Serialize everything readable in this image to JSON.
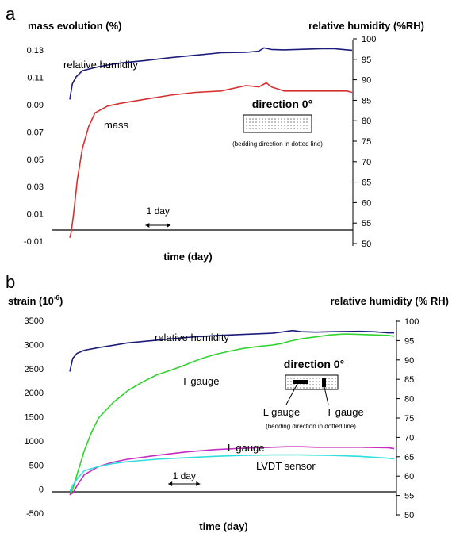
{
  "chart_data": [
    {
      "panel_label": "a",
      "type": "line",
      "title": "",
      "xlabel": "time (day)",
      "ylabel": "mass evolution (%)",
      "ylabel_right": "relative humidity (%RH)",
      "y_ticks": [
        "0.13",
        "0.11",
        "0.09",
        "0.07",
        "0.05",
        "0.03",
        "0.01",
        "-0.01"
      ],
      "y_tick_values": [
        0.13,
        0.11,
        0.09,
        0.07,
        0.05,
        0.03,
        0.01,
        -0.01
      ],
      "ylim": [
        -0.01,
        0.14
      ],
      "y2_ticks": [
        "100",
        "95",
        "90",
        "85",
        "80",
        "75",
        "70",
        "65",
        "60",
        "55",
        "50"
      ],
      "y2_tick_values": [
        100,
        95,
        90,
        85,
        80,
        75,
        70,
        65,
        60,
        55,
        50
      ],
      "y2lim": [
        50,
        100
      ],
      "xlim": [
        0,
        11.2
      ],
      "x_unit_note": "time in days, estimated from the 1 day scale bar (no tick labels printed)",
      "scale_bar_label": "1 day",
      "scale_bar": [
        3.0,
        4.0
      ],
      "series": [
        {
          "name": "relative humidity",
          "axis": "right",
          "color": "#1c1c7c",
          "x": [
            0.0,
            0.1,
            0.25,
            0.5,
            1.0,
            1.5,
            2.0,
            3.0,
            4.0,
            5.0,
            6.0,
            7.0,
            7.5,
            7.7,
            8.0,
            8.5,
            9.0,
            9.5,
            10.0,
            10.5,
            11.0,
            11.2
          ],
          "y": [
            85.2,
            89.0,
            90.7,
            92.2,
            93.0,
            93.6,
            94.1,
            94.7,
            95.4,
            96.0,
            96.6,
            96.7,
            97.0,
            97.8,
            97.4,
            97.3,
            97.4,
            97.5,
            97.6,
            97.6,
            97.3,
            97.2
          ]
        },
        {
          "name": "mass",
          "axis": "left",
          "color": "#d83030",
          "x": [
            0.0,
            0.05,
            0.15,
            0.3,
            0.5,
            0.75,
            1.0,
            1.5,
            2.0,
            3.0,
            4.0,
            5.0,
            6.0,
            7.0,
            7.5,
            7.8,
            8.0,
            8.5,
            9.0,
            10.0,
            10.5,
            11.0,
            11.2
          ],
          "y": [
            -0.0075,
            -0.004,
            0.01,
            0.035,
            0.058,
            0.074,
            0.084,
            0.089,
            0.091,
            0.094,
            0.097,
            0.099,
            0.1,
            0.104,
            0.103,
            0.106,
            0.103,
            0.1,
            0.1,
            0.1,
            0.1,
            0.1,
            0.099
          ]
        }
      ],
      "inset": {
        "title": "direction 0°",
        "caption": "(bedding direction in dotted line)"
      }
    },
    {
      "panel_label": "b",
      "type": "line",
      "title": "",
      "xlabel": "time (day)",
      "ylabel_base": "strain (10",
      "ylabel_exp": "-6",
      "ylabel_close": ")",
      "ylabel_right": "relative humidity (% RH)",
      "y_ticks": [
        "3500",
        "3000",
        "2500",
        "2000",
        "1500",
        "1000",
        "500",
        "0",
        "-500"
      ],
      "y_tick_values": [
        3500,
        3000,
        2500,
        2000,
        1500,
        1000,
        500,
        0,
        -500
      ],
      "ylim": [
        -500,
        3500
      ],
      "y2_ticks": [
        "100",
        "95",
        "90",
        "85",
        "80",
        "75",
        "70",
        "65",
        "60",
        "55",
        "50"
      ],
      "y2_tick_values": [
        100,
        95,
        90,
        85,
        80,
        75,
        70,
        65,
        60,
        55,
        50
      ],
      "y2lim": [
        50,
        100
      ],
      "xlim": [
        0,
        11.2
      ],
      "x_unit_note": "time in days, estimated from the 1 day scale bar (no tick labels printed)",
      "scale_bar_label": "1 day",
      "scale_bar": [
        3.4,
        4.5
      ],
      "series": [
        {
          "name": "relative humidity",
          "axis": "right",
          "color": "#1c1c7c",
          "x": [
            0.0,
            0.1,
            0.25,
            0.5,
            1.0,
            1.5,
            2.0,
            3.0,
            4.0,
            5.0,
            6.0,
            7.0,
            7.4,
            7.7,
            8.0,
            8.5,
            9.0,
            10.0,
            10.5,
            11.0,
            11.2
          ],
          "y": [
            87.0,
            90.4,
            91.7,
            92.5,
            93.2,
            93.8,
            94.4,
            95.1,
            95.8,
            96.3,
            96.6,
            96.9,
            97.3,
            97.6,
            97.3,
            97.2,
            97.3,
            97.4,
            97.3,
            97.0,
            97.0
          ]
        },
        {
          "name": "T gauge",
          "axis": "left",
          "color": "#2fd42f",
          "x": [
            0.0,
            0.1,
            0.25,
            0.5,
            0.75,
            1.0,
            1.5,
            2.0,
            2.5,
            3.0,
            3.5,
            4.0,
            4.5,
            5.0,
            5.5,
            6.0,
            6.5,
            7.0,
            7.3,
            7.6,
            8.0,
            8.5,
            9.0,
            9.5,
            10.0,
            10.5,
            11.0,
            11.2
          ],
          "y": [
            -120,
            0,
            300,
            800,
            1180,
            1480,
            1800,
            2040,
            2220,
            2370,
            2470,
            2580,
            2700,
            2790,
            2860,
            2920,
            2960,
            2990,
            3020,
            3070,
            3120,
            3160,
            3200,
            3220,
            3210,
            3200,
            3190,
            3170
          ]
        },
        {
          "name": "L gauge",
          "axis": "left",
          "color": "#c52bc5",
          "x": [
            0.0,
            0.1,
            0.3,
            0.5,
            1.0,
            1.5,
            2.0,
            3.0,
            4.0,
            5.0,
            6.0,
            7.0,
            7.5,
            8.0,
            8.5,
            9.0,
            10.0,
            11.0,
            11.2
          ],
          "y": [
            -120,
            -80,
            120,
            300,
            470,
            560,
            620,
            700,
            770,
            820,
            850,
            870,
            880,
            880,
            870,
            870,
            870,
            860,
            840
          ]
        },
        {
          "name": "LVDT sensor",
          "axis": "left",
          "color": "#2fdede",
          "x": [
            0.0,
            0.1,
            0.3,
            0.5,
            1.0,
            1.5,
            2.0,
            3.0,
            4.0,
            5.0,
            6.0,
            7.0,
            8.0,
            9.0,
            10.0,
            11.0,
            11.2
          ],
          "y": [
            -50,
            80,
            250,
            380,
            470,
            530,
            570,
            620,
            650,
            680,
            700,
            710,
            710,
            700,
            680,
            640,
            630
          ]
        }
      ],
      "inset": {
        "title": "direction 0°",
        "gauge_left_label": "L gauge",
        "gauge_right_label": "T gauge",
        "caption": "(bedding direction in dotted line)"
      }
    }
  ]
}
